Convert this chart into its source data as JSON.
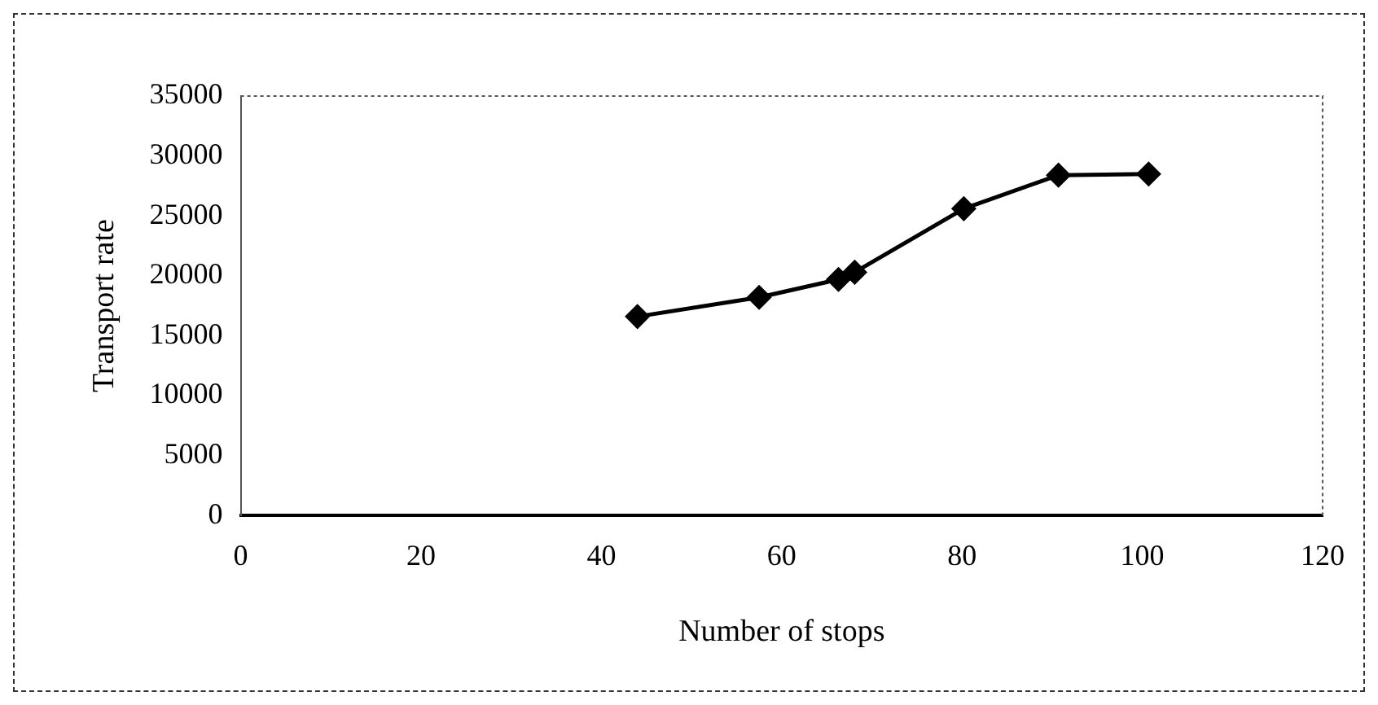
{
  "chart_data": {
    "type": "line",
    "xlabel": "Number of stops",
    "ylabel": "Transport rate",
    "x": [
      44,
      57.5,
      66.3,
      68.1,
      80.2,
      90.7,
      100.7
    ],
    "series": [
      {
        "color": "#000000",
        "values": [
          16600,
          18200,
          19700,
          20300,
          25600,
          28400,
          28500
        ]
      }
    ],
    "xlim": [
      0,
      120
    ],
    "xticks": [
      0,
      20,
      40,
      60,
      80,
      100,
      120
    ],
    "ylim": [
      0,
      35000
    ],
    "yticks": [
      0,
      5000,
      10000,
      15000,
      20000,
      25000,
      30000,
      35000
    ],
    "grid": false,
    "legend": false,
    "marker": "diamond",
    "line_style": "solid"
  }
}
